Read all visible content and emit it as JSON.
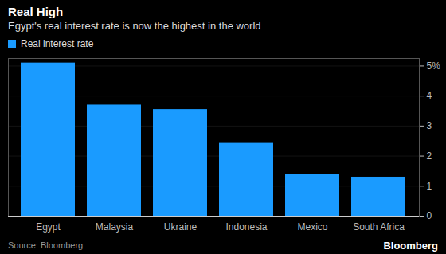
{
  "chart_data": {
    "type": "bar",
    "title": "Real High",
    "subtitle": "Egypt's real interest rate is now the highest in the world",
    "categories": [
      "Egypt",
      "Malaysia",
      "Ukraine",
      "Indonesia",
      "Mexico",
      "South Africa"
    ],
    "series": [
      {
        "name": "Real interest rate",
        "color": "#1a9bff",
        "values": [
          5.1,
          3.7,
          3.55,
          2.45,
          1.4,
          1.3
        ]
      }
    ],
    "ylim": [
      0,
      5.25
    ],
    "yticks": [
      0,
      1,
      2,
      3,
      4,
      {
        "value": 5,
        "label": "5%"
      }
    ],
    "grid": true,
    "legend": "top-left",
    "source": "Source: Bloomberg",
    "brand": "Bloomberg"
  }
}
